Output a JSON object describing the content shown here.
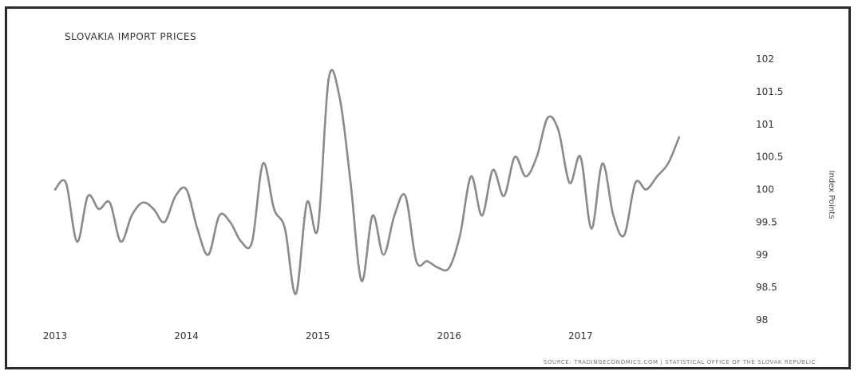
{
  "chart_data": {
    "type": "line",
    "title": "SLOVAKIA IMPORT PRICES",
    "ylabel": "Index Points",
    "xlabel": "",
    "source": "SOURCE: TRADINGECONOMICS.COM  |  STATISTICAL OFFICE OF THE SLOVAK REPUBLIC",
    "ylim": [
      98,
      102
    ],
    "yticks": [
      98,
      98.5,
      99,
      99.5,
      100,
      100.5,
      101,
      101.5,
      102
    ],
    "ytick_labels": [
      "98",
      "98.5",
      "99",
      "99.5",
      "100",
      "100.5",
      "101",
      "101.5",
      "102"
    ],
    "xticks": [
      "2013",
      "2014",
      "2015",
      "2016",
      "2017"
    ],
    "xlim": [
      2013,
      2017.8
    ],
    "grid": false,
    "line_color": "#8a8a8a",
    "x": [
      2013.0,
      2013.083,
      2013.167,
      2013.25,
      2013.333,
      2013.417,
      2013.5,
      2013.583,
      2013.667,
      2013.75,
      2013.833,
      2013.917,
      2014.0,
      2014.083,
      2014.167,
      2014.25,
      2014.333,
      2014.417,
      2014.5,
      2014.583,
      2014.667,
      2014.75,
      2014.833,
      2014.917,
      2015.0,
      2015.083,
      2015.167,
      2015.25,
      2015.333,
      2015.417,
      2015.5,
      2015.583,
      2015.667,
      2015.75,
      2015.833,
      2015.917,
      2016.0,
      2016.083,
      2016.167,
      2016.25,
      2016.333,
      2016.417,
      2016.5,
      2016.583,
      2016.667,
      2016.75,
      2016.833,
      2016.917,
      2017.0,
      2017.083,
      2017.167,
      2017.25,
      2017.333,
      2017.417,
      2017.5,
      2017.583,
      2017.667,
      2017.75
    ],
    "values": [
      100.0,
      100.1,
      99.2,
      99.9,
      99.7,
      99.8,
      99.2,
      99.6,
      99.8,
      99.7,
      99.5,
      99.9,
      100.0,
      99.4,
      99.0,
      99.6,
      99.5,
      99.2,
      99.2,
      100.4,
      99.7,
      99.4,
      98.4,
      99.8,
      99.4,
      101.7,
      101.4,
      100.1,
      98.6,
      99.6,
      99.0,
      99.6,
      99.9,
      98.9,
      98.9,
      98.8,
      98.8,
      99.3,
      100.2,
      99.6,
      100.3,
      99.9,
      100.5,
      100.2,
      100.5,
      101.1,
      100.9,
      100.1,
      100.5,
      99.4,
      100.4,
      99.6,
      99.3,
      100.1,
      100.0,
      100.2,
      100.4,
      100.8
    ]
  }
}
